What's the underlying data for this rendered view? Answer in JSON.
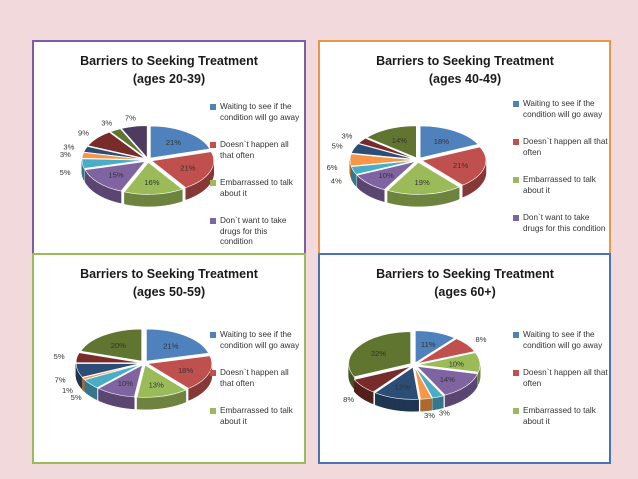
{
  "colors": [
    "#4f81bd",
    "#c0504d",
    "#9bbb59",
    "#8064a2",
    "#4bacc6",
    "#f79646",
    "#2c4d75",
    "#772c2a",
    "#5f7530",
    "#4d3b62"
  ],
  "chart_data": [
    {
      "type": "pie",
      "title_line1": "Barriers to Seeking Treatment",
      "title_line2": "(ages 20-39)",
      "categories": [
        "Waiting to see if the condition will go away",
        "Doesn`t happen all that often",
        "Embarrassed to talk about it",
        "Don`t want to take drugs for this condition",
        "",
        "",
        "",
        "",
        "",
        ""
      ],
      "legend": [
        "Waiting to see if the condition will go away",
        "Doesn`t happen all that often",
        "Embarrassed to talk about it",
        "Don`t want to take drugs for this condition"
      ],
      "values": [
        21,
        21,
        16,
        15,
        5,
        3,
        3,
        9,
        3,
        7
      ],
      "labels": [
        "21%",
        "21%",
        "16%",
        "15%",
        "5%",
        "3%",
        "3%",
        "9%",
        "3%",
        "7%"
      ]
    },
    {
      "type": "pie",
      "title_line1": "Barriers to Seeking Treatment",
      "title_line2": "(ages 40-49)",
      "categories": [
        "Waiting to see if the condition will go away",
        "Doesn`t happen all that often",
        "Embarrassed to talk about it",
        "Don`t want to take drugs for this condition",
        "",
        "",
        "",
        "",
        ""
      ],
      "legend": [
        "Waiting to see if the condition will go away",
        "Doesn`t happen all that often",
        "Embarrassed to talk about it",
        "Don`t want to take drugs for this condition"
      ],
      "values": [
        18,
        21,
        19,
        10,
        4,
        6,
        5,
        3,
        14
      ],
      "labels": [
        "18%",
        "21%",
        "19%",
        "10%",
        "4%",
        "6%",
        "5%",
        "3%",
        "14%"
      ]
    },
    {
      "type": "pie",
      "title_line1": "Barriers to Seeking Treatment",
      "title_line2": "(ages 50-59)",
      "categories": [
        "Waiting to see if the condition will go away",
        "Doesn`t happen all that often",
        "Embarrassed to talk about it",
        "",
        "",
        "",
        "",
        "",
        ""
      ],
      "legend": [
        "Waiting to see if the condition will go away",
        "Doesn`t happen all that often",
        "Embarrassed to talk about it"
      ],
      "values": [
        21,
        18,
        13,
        10,
        5,
        1,
        7,
        5,
        20
      ],
      "labels": [
        "21%",
        "18%",
        "13%",
        "10%",
        "5%",
        "1%",
        "7%",
        "5%",
        "20%"
      ]
    },
    {
      "type": "pie",
      "title_line1": "Barriers to Seeking Treatment",
      "title_line2": "(ages 60+)",
      "categories": [
        "Waiting to see if the condition will go away",
        "Doesn`t happen all that often",
        "Embarrassed to talk about it",
        "",
        "",
        "",
        "",
        "",
        ""
      ],
      "legend": [
        "Waiting to see if the condition will go away",
        "Doesn`t happen all that often",
        "Embarrassed to talk about it"
      ],
      "values": [
        11,
        8,
        10,
        14,
        3,
        3,
        12,
        8,
        32
      ],
      "labels": [
        "11%",
        "8%",
        "10%",
        "14%",
        "3%",
        "3%",
        "12%",
        "8%",
        "32%"
      ]
    }
  ]
}
